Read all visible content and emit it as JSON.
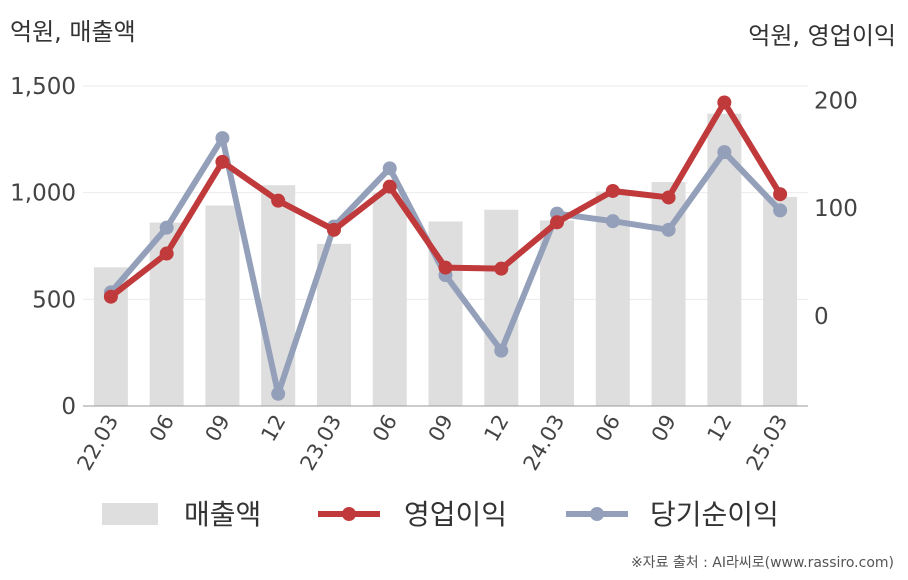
{
  "chart_data": {
    "type": "bar-line-combo",
    "categories": [
      "22.03",
      "06",
      "09",
      "12",
      "23.03",
      "06",
      "09",
      "12",
      "24.03",
      "06",
      "09",
      "12",
      "25.03"
    ],
    "series": [
      {
        "name": "매출액",
        "type": "bar",
        "axis": "left",
        "color": "#dedede",
        "values": [
          650,
          860,
          940,
          1035,
          760,
          1000,
          865,
          920,
          870,
          1005,
          1050,
          1370,
          980
        ]
      },
      {
        "name": "영업이익",
        "type": "line",
        "axis": "right",
        "color": "#c0393b",
        "values": [
          18,
          58,
          143,
          107,
          80,
          120,
          45,
          44,
          87,
          116,
          110,
          198,
          113
        ]
      },
      {
        "name": "당기순이익",
        "type": "line",
        "axis": "right",
        "color": "#94a0ba",
        "values": [
          22,
          82,
          165,
          -72,
          83,
          137,
          38,
          -32,
          95,
          88,
          80,
          152,
          98
        ]
      }
    ],
    "y_left": {
      "label": "억원, 매출액",
      "min": 0,
      "max": 1500,
      "ticks": [
        0,
        500,
        1000,
        1500
      ],
      "tick_labels": [
        "0",
        "500",
        "1,000",
        "1,500"
      ]
    },
    "y_right": {
      "label": "억원, 영업이익",
      "min": -83.3,
      "max": 213.3,
      "ticks": [
        0,
        100,
        200
      ],
      "tick_labels": [
        "0",
        "100",
        "200"
      ]
    },
    "legend": {
      "placement": "bottom",
      "items": [
        "매출액",
        "영업이익",
        "당기순이익"
      ]
    },
    "grid": true,
    "source": "※자료 출처 : AI라씨로(www.rassiro.com)"
  }
}
